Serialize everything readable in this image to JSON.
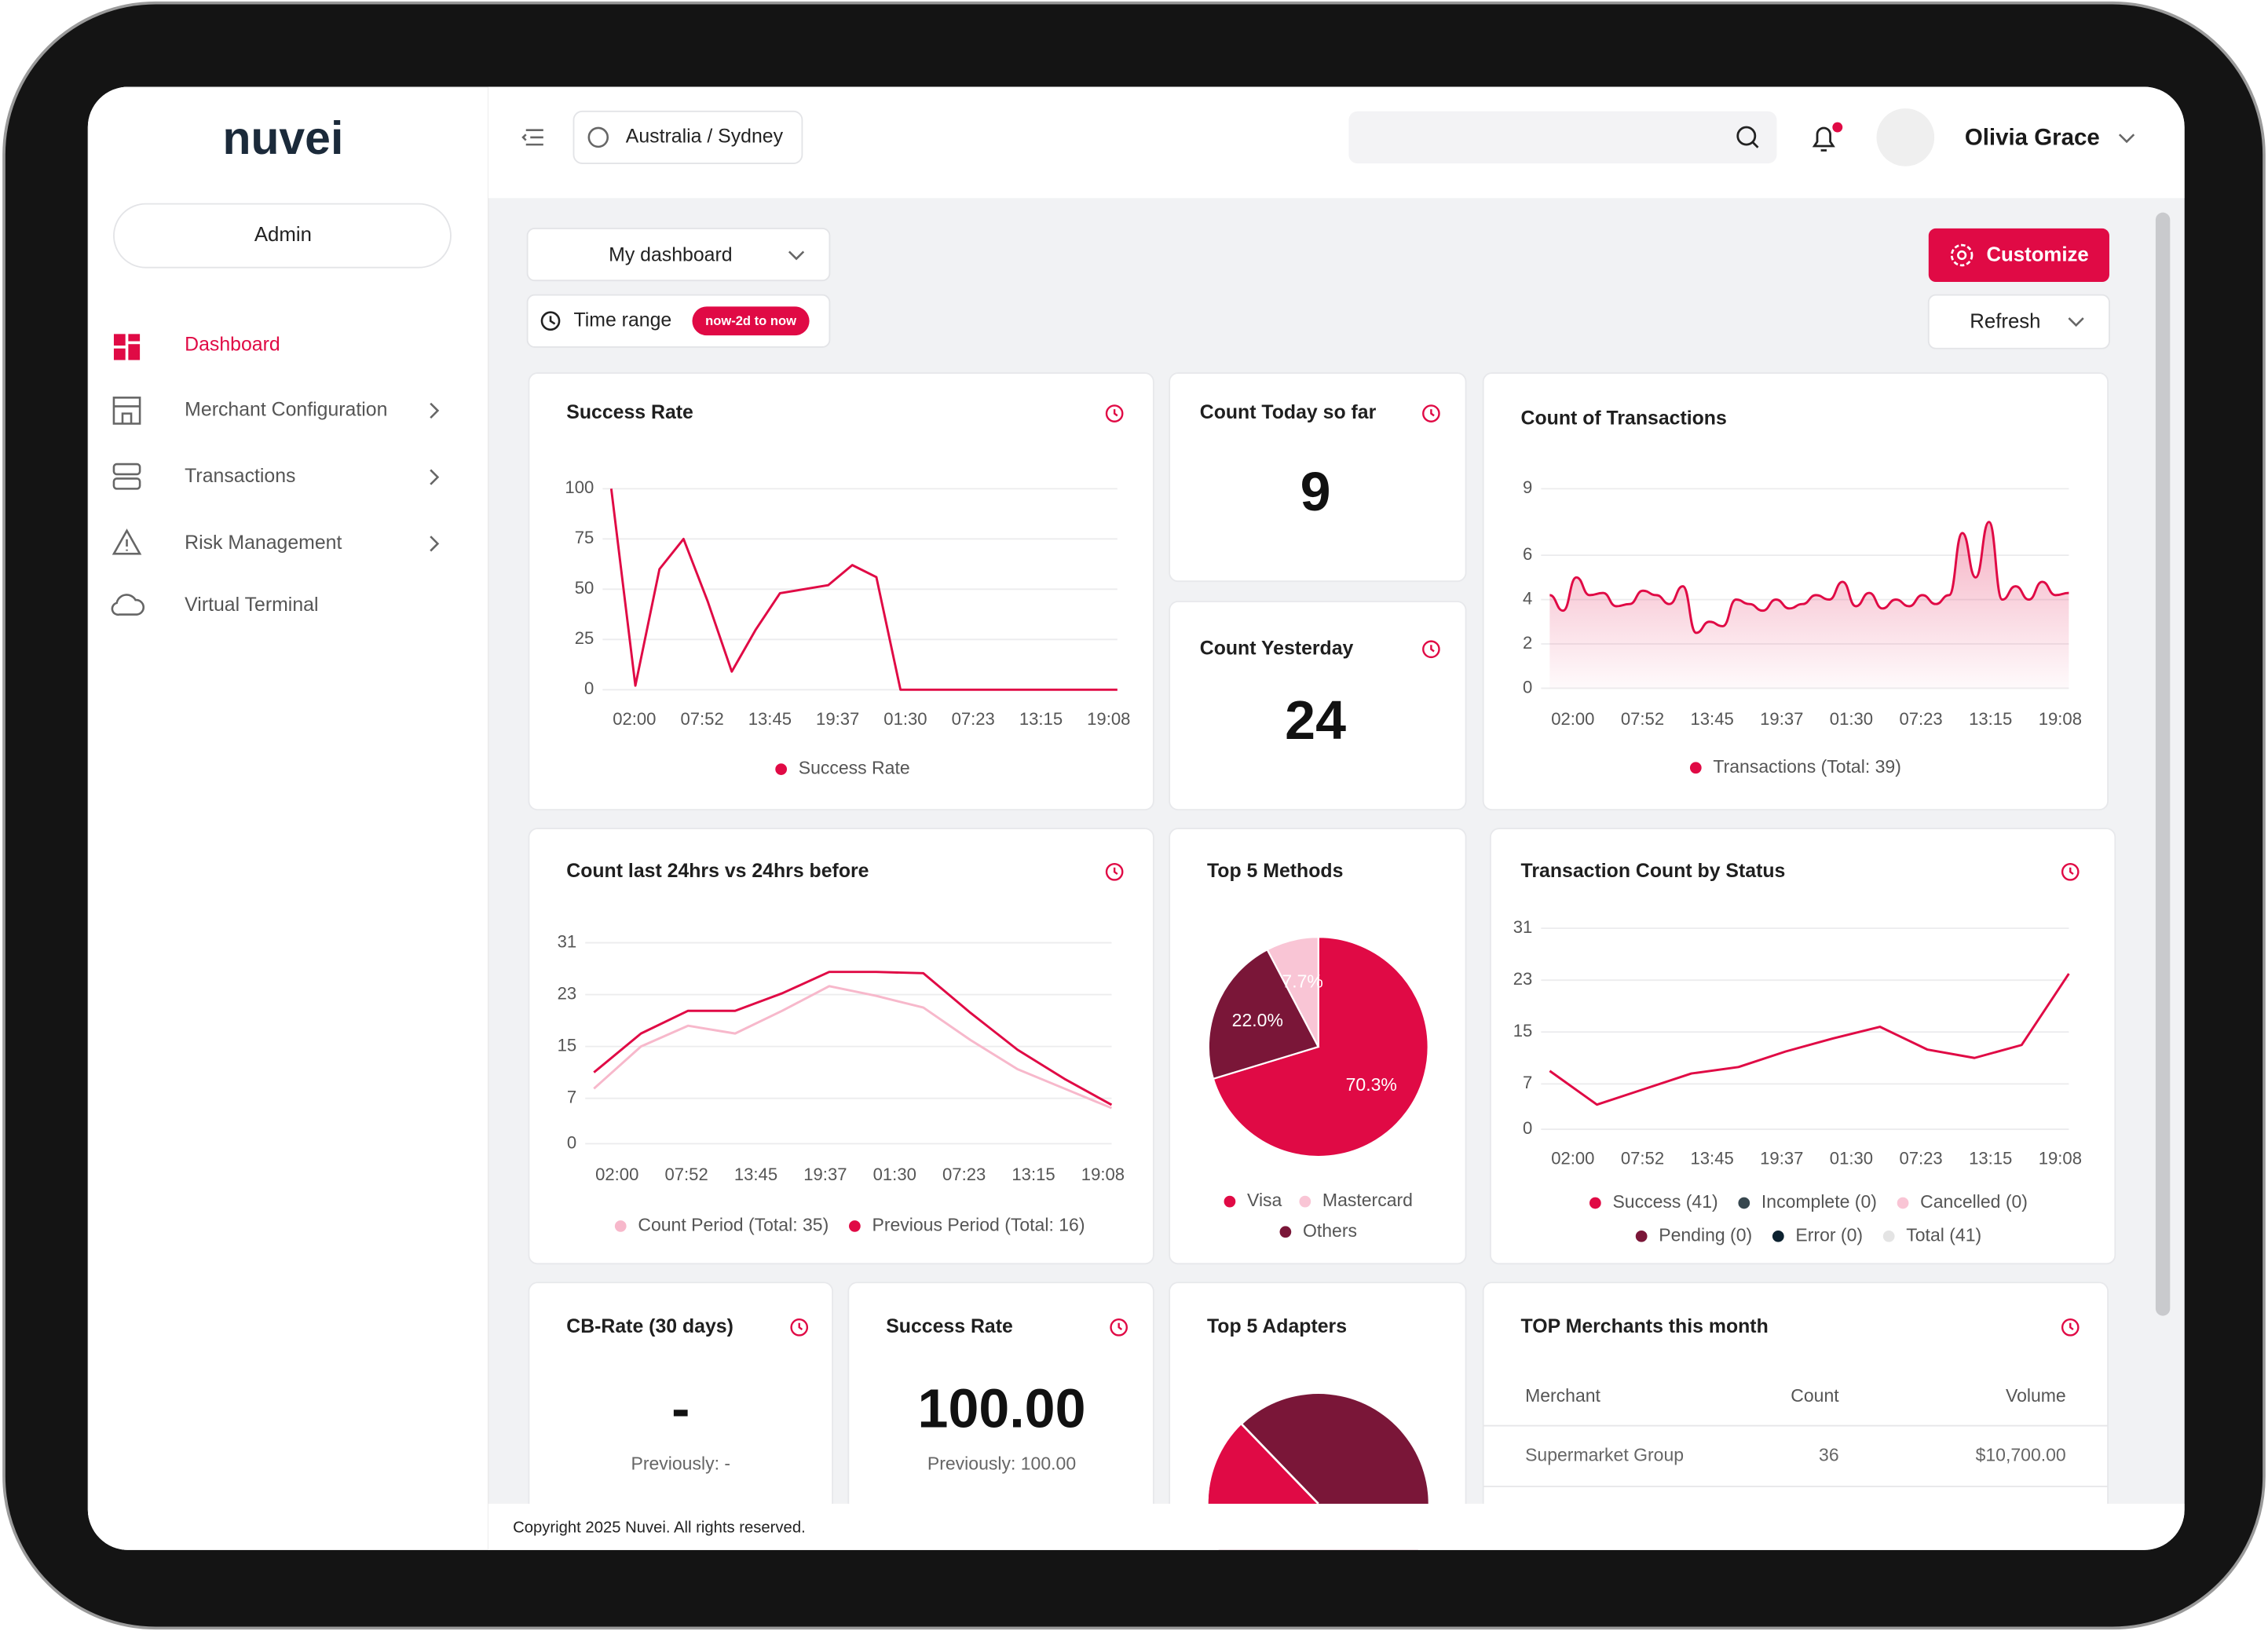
{
  "sidebar": {
    "logo": "nuvei",
    "role": "Admin",
    "nav": [
      "Dashboard",
      "Merchant Configuration",
      "Transactions",
      "Risk Management",
      "Virtual Terminal"
    ]
  },
  "header": {
    "timezone": "Australia / Sydney",
    "user": "Olivia Grace"
  },
  "toolbar": {
    "dashboard": "My dashboard",
    "time_range": "Time range",
    "time_range_value": "now-2d to now",
    "customize": "Customize",
    "refresh": "Refresh"
  },
  "widgets": {
    "success_rate": {
      "title": "Success Rate",
      "type": "line",
      "x_tick_labels": [
        "02:00",
        "07:52",
        "13:45",
        "19:37",
        "01:30",
        "07:23",
        "13:15",
        "19:08"
      ],
      "ylim": [
        0,
        100
      ],
      "yticks": [
        0,
        25,
        50,
        75,
        100
      ],
      "series": [
        {
          "name": "Success Rate",
          "color": "#e00a45",
          "values": [
            100,
            2,
            60,
            75,
            44,
            9,
            30,
            48,
            50,
            52,
            62,
            56,
            0,
            0,
            0,
            0,
            0,
            0,
            0,
            0,
            0,
            0
          ]
        }
      ]
    },
    "count_today": {
      "title": "Count Today so far",
      "value": "9"
    },
    "count_yesterday": {
      "title": "Count Yesterday",
      "value": "24"
    },
    "count_transactions": {
      "title": "Count of Transactions",
      "type": "area",
      "x_tick_labels": [
        "02:00",
        "07:52",
        "13:45",
        "19:37",
        "01:30",
        "07:23",
        "13:15",
        "19:08"
      ],
      "ylim": [
        0,
        9
      ],
      "yticks": [
        0,
        2,
        4,
        6,
        9
      ],
      "series": [
        {
          "name": "Transactions (Total: 39)",
          "color": "#e00a45",
          "values": [
            4.2,
            3.5,
            5,
            4.2,
            4.3,
            3.7,
            3.8,
            4.4,
            4.2,
            3.8,
            4.6,
            2.5,
            3,
            2.8,
            4,
            3.8,
            3.5,
            4,
            3.6,
            3.8,
            4.2,
            4,
            4.8,
            3.7,
            4.3,
            3.6,
            4,
            3.7,
            4.2,
            3.8,
            4.2,
            7,
            5,
            7.5,
            4,
            4.6,
            4,
            4.8,
            4.2,
            4.3
          ]
        }
      ]
    },
    "count_24h": {
      "title": "Count last 24hrs vs 24hrs before",
      "type": "line",
      "x_tick_labels": [
        "02:00",
        "07:52",
        "13:45",
        "19:37",
        "01:30",
        "07:23",
        "13:15",
        "19:08"
      ],
      "ylim": [
        0,
        31
      ],
      "yticks": [
        0,
        7,
        15,
        23,
        31
      ],
      "series": [
        {
          "name": "Count Period (Total: 35)",
          "color": "#f7b8cb",
          "values": [
            8.5,
            15,
            18.2,
            17,
            20.5,
            24.3,
            22.8,
            21,
            16,
            11.5,
            8.5,
            5.5
          ]
        },
        {
          "name": "Previous Period (Total: 16)",
          "color": "#e00a45",
          "values": [
            11,
            17,
            20.5,
            20.5,
            23.2,
            26.5,
            26.5,
            26.3,
            20.2,
            14.5,
            10,
            6
          ]
        }
      ]
    },
    "top_methods": {
      "title": "Top 5 Methods",
      "type": "pie",
      "categories": [
        "Visa",
        "Mastercard",
        "Others"
      ],
      "values": [
        70.3,
        7.7,
        22.0
      ],
      "value_labels": [
        "70.3%",
        "7.7%",
        "22.0%"
      ],
      "colors": [
        "#e00a45",
        "#f9c5d5",
        "#7a1638"
      ]
    },
    "status": {
      "title": "Transaction Count by Status",
      "type": "line",
      "x_tick_labels": [
        "02:00",
        "07:52",
        "13:45",
        "19:37",
        "01:30",
        "07:23",
        "13:15",
        "19:08"
      ],
      "ylim": [
        0,
        31
      ],
      "yticks": [
        0,
        7,
        15,
        23,
        31
      ],
      "series": [
        {
          "name": "Success (41)",
          "color": "#e00a45",
          "values": [
            9,
            3.8,
            6.2,
            8.6,
            9.6,
            12,
            14,
            15.8,
            12.3,
            11,
            13,
            24
          ]
        },
        {
          "name": "Incomplete (0)",
          "color": "#37474f"
        },
        {
          "name": "Cancelled (0)",
          "color": "#f9c5d5"
        },
        {
          "name": "Pending (0)",
          "color": "#7a1638"
        },
        {
          "name": "Error (0)",
          "color": "#0d2230"
        },
        {
          "name": "Total (41)",
          "color": "#e4e4e4"
        }
      ]
    },
    "cb_rate": {
      "title": "CB-Rate (30 days)",
      "value": "-",
      "previous": "Previously: -"
    },
    "success_rate_kpi": {
      "title": "Success Rate",
      "value": "100.00",
      "previous": "Previously: 100.00"
    },
    "top_adapters": {
      "title": "Top 5 Adapters"
    },
    "top_merchants": {
      "title": "TOP Merchants this month",
      "table": {
        "columns": [
          "Merchant",
          "Count",
          "Volume"
        ],
        "rows": [
          [
            "Supermarket Group",
            "36",
            "$10,700.00"
          ]
        ]
      }
    }
  },
  "footer": "Copyright 2025 Nuvei. All rights reserved."
}
